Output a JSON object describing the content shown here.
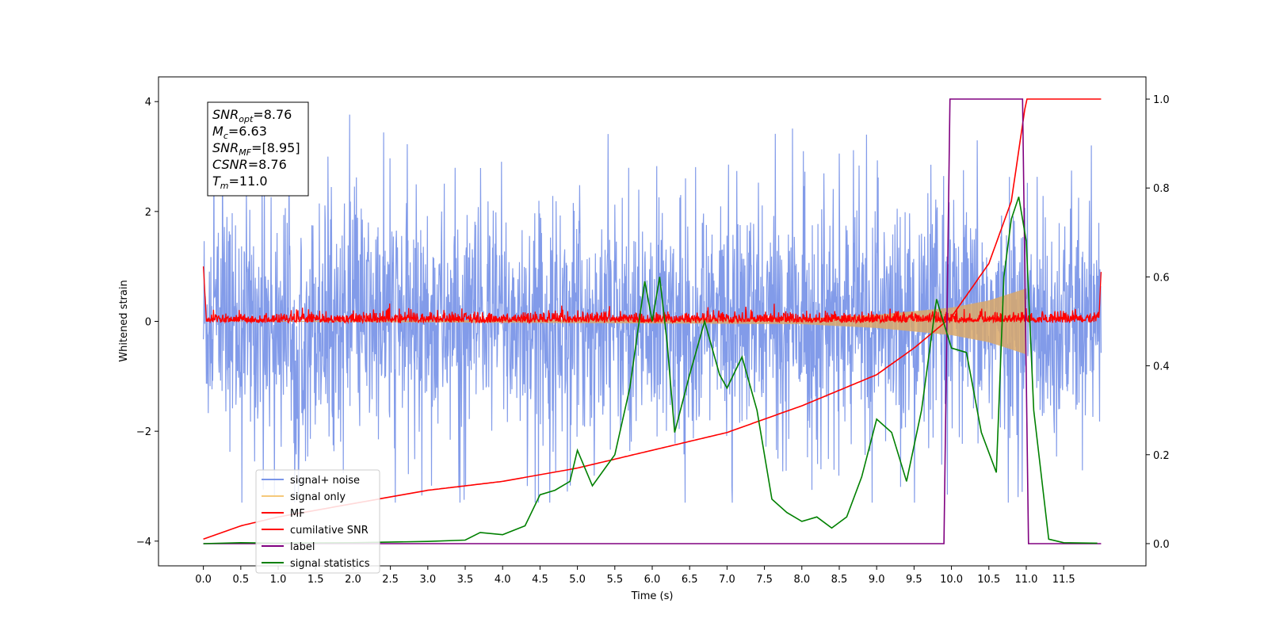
{
  "chart_data": {
    "type": "line",
    "xlabel": "Time (s)",
    "ylabel": "Whitened strain",
    "xlim": [
      -0.6,
      12.6
    ],
    "ylim_left": [
      -4.45,
      4.45
    ],
    "ylim_right": [
      -0.05,
      1.05
    ],
    "x_ticks": [
      "0.0",
      "0.5",
      "1.0",
      "1.5",
      "2.0",
      "2.5",
      "3.0",
      "3.5",
      "4.0",
      "4.5",
      "5.0",
      "5.5",
      "6.0",
      "6.5",
      "7.0",
      "7.5",
      "8.0",
      "8.5",
      "9.0",
      "9.5",
      "10.0",
      "10.5",
      "11.0",
      "11.5"
    ],
    "y_ticks_left": [
      "−4",
      "−2",
      "0",
      "2",
      "4"
    ],
    "y_ticks_right": [
      "0.0",
      "0.2",
      "0.4",
      "0.6",
      "0.8",
      "1.0"
    ],
    "annotation": {
      "lines": [
        {
          "sym": "SNR",
          "sub": "opt",
          "value": "=8.76"
        },
        {
          "sym": "M",
          "sub": "c",
          "value": "=6.63"
        },
        {
          "sym": "SNR",
          "sub": "MF",
          "value": "=[8.95]"
        },
        {
          "sym": "CSNR",
          "sub": "",
          "value": "=8.76"
        },
        {
          "sym": "T",
          "sub": "m",
          "value": "=11.0"
        }
      ]
    },
    "legend": {
      "placement": "lower-left",
      "entries": [
        {
          "label": "signal+ noise",
          "color": "#7b96e8"
        },
        {
          "label": "signal only",
          "color": "#f5c97a"
        },
        {
          "label": "MF",
          "color": "#ff0000"
        },
        {
          "label": "cumilative SNR",
          "color": "#ff0000"
        },
        {
          "label": "label",
          "color": "#800080"
        },
        {
          "label": "signal statistics",
          "color": "#008000"
        }
      ]
    },
    "series": [
      {
        "name": "signal+ noise",
        "axis": "left",
        "color": "#7b96e8",
        "x_range": [
          0.0,
          12.0
        ],
        "amplitude_range": [
          -3.3,
          4.0
        ],
        "description_note": null
      },
      {
        "name": "signal only",
        "axis": "left",
        "color": "#d9a86a",
        "x_range": [
          0.0,
          11.0
        ],
        "envelope": {
          "x": [
            0,
            8,
            9,
            10,
            10.5,
            11.0
          ],
          "amp": [
            0,
            0.05,
            0.12,
            0.25,
            0.38,
            0.6
          ]
        }
      },
      {
        "name": "MF",
        "axis": "left",
        "color": "#ff0000",
        "x_range": [
          0.0,
          12.0
        ],
        "amplitude_range": [
          -0.15,
          0.35
        ]
      },
      {
        "name": "cumilative SNR",
        "axis": "right",
        "color": "#ff0000",
        "x": [
          0.0,
          0.5,
          1.0,
          2.0,
          3.0,
          4.0,
          5.0,
          6.0,
          7.0,
          8.0,
          9.0,
          9.5,
          10.0,
          10.5,
          10.8,
          11.0,
          12.0
        ],
        "y": [
          0.01,
          0.04,
          0.06,
          0.09,
          0.12,
          0.14,
          0.17,
          0.21,
          0.25,
          0.31,
          0.38,
          0.44,
          0.51,
          0.63,
          0.77,
          1.0,
          1.0
        ]
      },
      {
        "name": "label",
        "axis": "right",
        "color": "#800080",
        "x": [
          0.0,
          9.9,
          9.98,
          10.95,
          11.03,
          12.0
        ],
        "y": [
          0.0,
          0.0,
          1.0,
          1.0,
          0.0,
          0.0
        ]
      },
      {
        "name": "signal statistics",
        "axis": "right",
        "color": "#008000",
        "x": [
          0.0,
          0.5,
          1.0,
          2.0,
          3.0,
          3.5,
          3.7,
          4.0,
          4.3,
          4.5,
          4.7,
          4.9,
          5.0,
          5.2,
          5.5,
          5.7,
          5.9,
          6.0,
          6.1,
          6.2,
          6.3,
          6.5,
          6.7,
          6.9,
          7.0,
          7.2,
          7.4,
          7.6,
          7.8,
          8.0,
          8.2,
          8.4,
          8.6,
          8.8,
          9.0,
          9.2,
          9.4,
          9.6,
          9.8,
          10.0,
          10.2,
          10.4,
          10.6,
          10.7,
          10.8,
          10.9,
          11.0,
          11.1,
          11.3,
          11.5,
          11.95
        ],
        "y": [
          0.0,
          0.002,
          0.001,
          0.002,
          0.005,
          0.008,
          0.025,
          0.02,
          0.04,
          0.11,
          0.12,
          0.14,
          0.21,
          0.13,
          0.2,
          0.35,
          0.59,
          0.5,
          0.6,
          0.45,
          0.25,
          0.38,
          0.5,
          0.38,
          0.35,
          0.42,
          0.3,
          0.1,
          0.07,
          0.05,
          0.06,
          0.035,
          0.06,
          0.15,
          0.28,
          0.25,
          0.14,
          0.3,
          0.55,
          0.44,
          0.43,
          0.25,
          0.16,
          0.6,
          0.73,
          0.78,
          0.68,
          0.3,
          0.01,
          0.002,
          0.001
        ]
      }
    ]
  }
}
